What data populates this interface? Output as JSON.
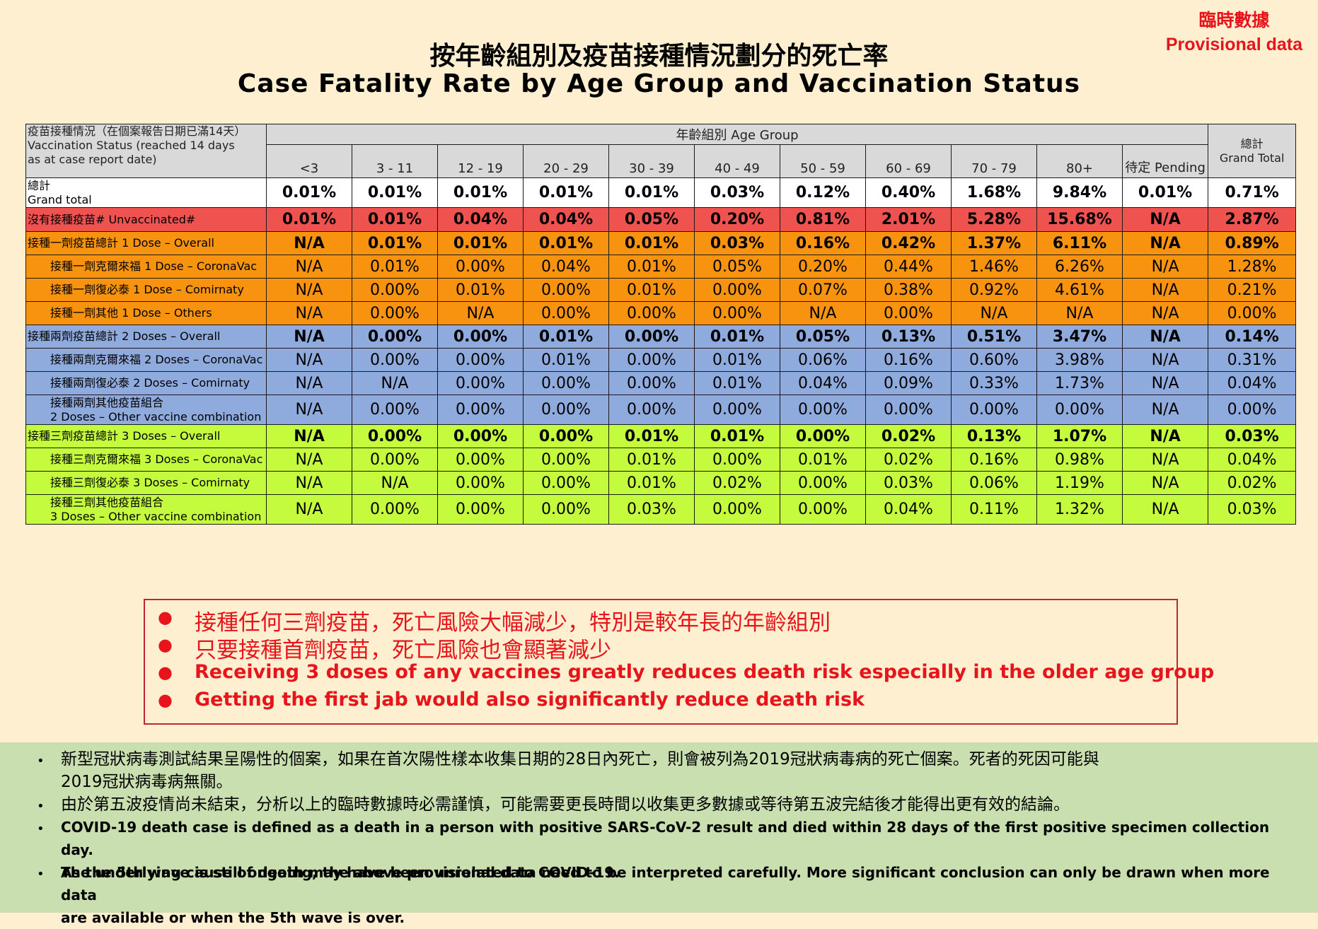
{
  "provisional": {
    "zh": "臨時數據",
    "en": "Provisional data"
  },
  "title": {
    "zh": "按年齡組別及疫苗接種情況劃分的死亡率",
    "en": "Case Fatality Rate by Age Group and Vaccination Status"
  },
  "table": {
    "header_label": {
      "line1": "疫苗接種情況（在個案報告日期已滿14天）",
      "line2": "Vaccination Status (reached 14 days",
      "line3": "as at case report date)"
    },
    "age_group_label": "年齡組別 Age Group",
    "grand_total_header": {
      "zh": "總計",
      "en": "Grand Total"
    },
    "age_groups": [
      "<3",
      "3 - 11",
      "12 - 19",
      "20 - 29",
      "30 - 39",
      "40 - 49",
      "50 - 59",
      "60 - 69",
      "70 - 79",
      "80+",
      "待定 Pending"
    ],
    "rows": [
      {
        "label1": "總計",
        "label2": "Grand total",
        "values": [
          "0.01%",
          "0.01%",
          "0.01%",
          "0.01%",
          "0.01%",
          "0.03%",
          "0.12%",
          "0.40%",
          "1.68%",
          "9.84%",
          "0.01%",
          "0.71%"
        ]
      },
      {
        "label1": "沒有接種疫苗# Unvaccinated#",
        "label2": "",
        "values": [
          "0.01%",
          "0.01%",
          "0.04%",
          "0.04%",
          "0.05%",
          "0.20%",
          "0.81%",
          "2.01%",
          "5.28%",
          "15.68%",
          "N/A",
          "2.87%"
        ]
      },
      {
        "label1": "接種一劑疫苗總計 1 Dose – Overall",
        "label2": "",
        "values": [
          "N/A",
          "0.01%",
          "0.01%",
          "0.01%",
          "0.01%",
          "0.03%",
          "0.16%",
          "0.42%",
          "1.37%",
          "6.11%",
          "N/A",
          "0.89%"
        ]
      },
      {
        "label1": "接種一劑克爾來福 1 Dose – CoronaVac",
        "label2": "",
        "values": [
          "N/A",
          "0.01%",
          "0.00%",
          "0.04%",
          "0.01%",
          "0.05%",
          "0.20%",
          "0.44%",
          "1.46%",
          "6.26%",
          "N/A",
          "1.28%"
        ]
      },
      {
        "label1": "接種一劑復必泰 1 Dose – Comirnaty",
        "label2": "",
        "values": [
          "N/A",
          "0.00%",
          "0.01%",
          "0.00%",
          "0.01%",
          "0.00%",
          "0.07%",
          "0.38%",
          "0.92%",
          "4.61%",
          "N/A",
          "0.21%"
        ]
      },
      {
        "label1": "接種一劑其他 1 Dose – Others",
        "label2": "",
        "values": [
          "N/A",
          "0.00%",
          "N/A",
          "0.00%",
          "0.00%",
          "0.00%",
          "N/A",
          "0.00%",
          "N/A",
          "N/A",
          "N/A",
          "0.00%"
        ]
      },
      {
        "label1": "接種兩劑疫苗總計 2 Doses – Overall",
        "label2": "",
        "values": [
          "N/A",
          "0.00%",
          "0.00%",
          "0.01%",
          "0.00%",
          "0.01%",
          "0.05%",
          "0.13%",
          "0.51%",
          "3.47%",
          "N/A",
          "0.14%"
        ]
      },
      {
        "label1": "接種兩劑克爾來福 2 Doses – CoronaVac",
        "label2": "",
        "values": [
          "N/A",
          "0.00%",
          "0.00%",
          "0.01%",
          "0.00%",
          "0.01%",
          "0.06%",
          "0.16%",
          "0.60%",
          "3.98%",
          "N/A",
          "0.31%"
        ]
      },
      {
        "label1": "接種兩劑復必泰 2 Doses – Comirnaty",
        "label2": "",
        "values": [
          "N/A",
          "N/A",
          "0.00%",
          "0.00%",
          "0.00%",
          "0.01%",
          "0.04%",
          "0.09%",
          "0.33%",
          "1.73%",
          "N/A",
          "0.04%"
        ]
      },
      {
        "label1": "接種兩劑其他疫苗組合",
        "label2": "2 Doses – Other vaccine combination",
        "values": [
          "N/A",
          "0.00%",
          "0.00%",
          "0.00%",
          "0.00%",
          "0.00%",
          "0.00%",
          "0.00%",
          "0.00%",
          "0.00%",
          "N/A",
          "0.00%"
        ]
      },
      {
        "label1": "接種三劑疫苗總計 3 Doses – Overall",
        "label2": "",
        "values": [
          "N/A",
          "0.00%",
          "0.00%",
          "0.00%",
          "0.01%",
          "0.01%",
          "0.00%",
          "0.02%",
          "0.13%",
          "1.07%",
          "N/A",
          "0.03%"
        ]
      },
      {
        "label1": "接種三劑克爾來福 3 Doses – CoronaVac",
        "label2": "",
        "values": [
          "N/A",
          "0.00%",
          "0.00%",
          "0.00%",
          "0.01%",
          "0.00%",
          "0.01%",
          "0.02%",
          "0.16%",
          "0.98%",
          "N/A",
          "0.04%"
        ]
      },
      {
        "label1": "接種三劑復必泰 3 Doses – Comirnaty",
        "label2": "",
        "values": [
          "N/A",
          "N/A",
          "0.00%",
          "0.00%",
          "0.01%",
          "0.02%",
          "0.00%",
          "0.03%",
          "0.06%",
          "1.19%",
          "N/A",
          "0.02%"
        ]
      },
      {
        "label1": "接種三劑其他疫苗組合",
        "label2": "3 Doses – Other vaccine combination",
        "values": [
          "N/A",
          "0.00%",
          "0.00%",
          "0.00%",
          "0.03%",
          "0.00%",
          "0.00%",
          "0.04%",
          "0.11%",
          "1.32%",
          "N/A",
          "0.03%"
        ]
      }
    ]
  },
  "key_points": [
    "接種任何三劑疫苗，死亡風險大幅減少，特別是較年長的年齡組別",
    "只要接種首劑疫苗，死亡風險也會顯著減少",
    "Receiving 3 doses of any vaccines greatly reduces death risk especially in the older age group",
    "Getting the first jab would also significantly reduce death risk"
  ],
  "notes": [
    {
      "line1": "新型冠狀病毒測試結果呈陽性的個案，如果在首次陽性樣本收集日期的28日內死亡，則會被列為2019冠狀病毒病的死亡個案。死者的死因可能與",
      "line2": "2019冠狀病毒病無關。"
    },
    {
      "line1": "由於第五波疫情尚未結束，分析以上的臨時數據時必需謹慎，可能需要更長時間以收集更多數據或等待第五波完結後才能得出更有效的結論。",
      "line2": ""
    },
    {
      "line1": "COVID-19 death case is defined as a death in a person with positive SARS-CoV-2 result and died within 28 days of the first positive specimen collection day.",
      "line2": "The underlying cause of death may have been unrelated to COVID-19."
    },
    {
      "line1": "As the 5th wave is still ongoing, the above provisional data need to be interpreted carefully.  More significant conclusion can only be drawn when more data",
      "line2": "are available or when the 5th wave is over."
    }
  ]
}
